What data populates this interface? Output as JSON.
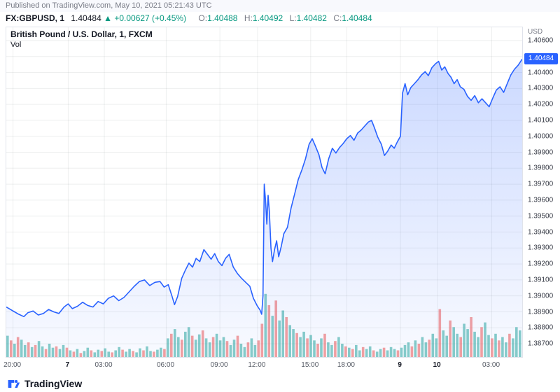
{
  "published_bar": {
    "text": "Published on TradingView.com, May 10, 2021 05:21:43 UTC"
  },
  "symbol_bar": {
    "symbol": "FX:GBPUSD, 1",
    "price": "1.40484",
    "direction_icon": "▲",
    "change": "+0.00627 (+0.45%)",
    "ohlc": [
      {
        "label": "O:",
        "value": "1.40488"
      },
      {
        "label": "H:",
        "value": "1.40492"
      },
      {
        "label": "L:",
        "value": "1.40482"
      },
      {
        "label": "C:",
        "value": "1.40484"
      }
    ]
  },
  "chart": {
    "title": "British Pound / U.S. Dollar, 1, FXCM",
    "vol_label": "Vol",
    "axis_currency": "USD",
    "last_price_label": "1.40484"
  },
  "footer": {
    "brand": "TradingView"
  },
  "colors": {
    "line_blue": "#2962FF",
    "text_green": "#089981",
    "volume_green": "#26a69a",
    "volume_red": "#ef5350",
    "grid": "rgba(42,46,57,0.08)",
    "badge_bg": "#2962FF"
  },
  "chart_data": {
    "type": "area",
    "title": "British Pound / U.S. Dollar, 1, FXCM",
    "ylabel": "USD",
    "legend_position": "none",
    "grid": true,
    "ylim": [
      1.38617,
      1.40683
    ],
    "last_price": 1.40484,
    "y_ticks": [
      1.406,
      1.405,
      1.404,
      1.403,
      1.402,
      1.401,
      1.4,
      1.399,
      1.398,
      1.397,
      1.396,
      1.395,
      1.394,
      1.393,
      1.392,
      1.391,
      1.39,
      1.389,
      1.388,
      1.387
    ],
    "x_ticks": [
      {
        "f": 0.013,
        "label": "20:00",
        "day": false
      },
      {
        "f": 0.12,
        "label": "7",
        "day": true
      },
      {
        "f": 0.19,
        "label": "03:00",
        "day": false
      },
      {
        "f": 0.31,
        "label": "06:00",
        "day": false
      },
      {
        "f": 0.414,
        "label": "09:00",
        "day": false
      },
      {
        "f": 0.487,
        "label": "12:00",
        "day": false
      },
      {
        "f": 0.59,
        "label": "15:00",
        "day": false
      },
      {
        "f": 0.66,
        "label": "18:00",
        "day": false
      },
      {
        "f": 0.764,
        "label": "9",
        "day": true
      },
      {
        "f": 0.836,
        "label": "10",
        "day": true
      },
      {
        "f": 0.941,
        "label": "03:00",
        "day": false
      }
    ],
    "points": [
      [
        0.0,
        1.3893
      ],
      [
        0.008,
        1.38915
      ],
      [
        0.016,
        1.389
      ],
      [
        0.024,
        1.38885
      ],
      [
        0.034,
        1.3887
      ],
      [
        0.042,
        1.38895
      ],
      [
        0.052,
        1.38905
      ],
      [
        0.062,
        1.3888
      ],
      [
        0.072,
        1.3889
      ],
      [
        0.082,
        1.38915
      ],
      [
        0.092,
        1.389
      ],
      [
        0.102,
        1.3889
      ],
      [
        0.112,
        1.3893
      ],
      [
        0.12,
        1.3895
      ],
      [
        0.128,
        1.3892
      ],
      [
        0.138,
        1.38935
      ],
      [
        0.148,
        1.3896
      ],
      [
        0.158,
        1.3894
      ],
      [
        0.168,
        1.3893
      ],
      [
        0.178,
        1.38965
      ],
      [
        0.188,
        1.3895
      ],
      [
        0.198,
        1.38985
      ],
      [
        0.208,
        1.39
      ],
      [
        0.218,
        1.3897
      ],
      [
        0.228,
        1.3899
      ],
      [
        0.238,
        1.39025
      ],
      [
        0.248,
        1.3906
      ],
      [
        0.258,
        1.3909
      ],
      [
        0.268,
        1.391
      ],
      [
        0.278,
        1.39065
      ],
      [
        0.288,
        1.39085
      ],
      [
        0.298,
        1.3909
      ],
      [
        0.306,
        1.39055
      ],
      [
        0.314,
        1.3907
      ],
      [
        0.321,
        1.39
      ],
      [
        0.326,
        1.38945
      ],
      [
        0.332,
        1.38995
      ],
      [
        0.34,
        1.3911
      ],
      [
        0.347,
        1.3916
      ],
      [
        0.354,
        1.39205
      ],
      [
        0.361,
        1.3918
      ],
      [
        0.368,
        1.39235
      ],
      [
        0.375,
        1.39215
      ],
      [
        0.383,
        1.3929
      ],
      [
        0.39,
        1.3926
      ],
      [
        0.397,
        1.3923
      ],
      [
        0.404,
        1.39265
      ],
      [
        0.411,
        1.39215
      ],
      [
        0.418,
        1.3919
      ],
      [
        0.425,
        1.39235
      ],
      [
        0.432,
        1.3926
      ],
      [
        0.44,
        1.3918
      ],
      [
        0.448,
        1.3914
      ],
      [
        0.456,
        1.3911
      ],
      [
        0.464,
        1.39085
      ],
      [
        0.472,
        1.3906
      ],
      [
        0.479,
        1.38985
      ],
      [
        0.486,
        1.3894
      ],
      [
        0.492,
        1.3891
      ],
      [
        0.495,
        1.38885
      ],
      [
        0.4975,
        1.39
      ],
      [
        0.5,
        1.397
      ],
      [
        0.5025,
        1.396
      ],
      [
        0.505,
        1.3945
      ],
      [
        0.5075,
        1.3963
      ],
      [
        0.51,
        1.3952
      ],
      [
        0.513,
        1.393
      ],
      [
        0.516,
        1.39215
      ],
      [
        0.52,
        1.3929
      ],
      [
        0.524,
        1.39345
      ],
      [
        0.528,
        1.39245
      ],
      [
        0.533,
        1.3931
      ],
      [
        0.538,
        1.3939
      ],
      [
        0.545,
        1.3943
      ],
      [
        0.552,
        1.3955
      ],
      [
        0.559,
        1.3964
      ],
      [
        0.566,
        1.3973
      ],
      [
        0.573,
        1.3979
      ],
      [
        0.58,
        1.3986
      ],
      [
        0.587,
        1.3995
      ],
      [
        0.593,
        1.39985
      ],
      [
        0.599,
        1.3994
      ],
      [
        0.606,
        1.39885
      ],
      [
        0.612,
        1.39805
      ],
      [
        0.618,
        1.39765
      ],
      [
        0.625,
        1.3986
      ],
      [
        0.632,
        1.39925
      ],
      [
        0.639,
        1.39895
      ],
      [
        0.646,
        1.3993
      ],
      [
        0.653,
        1.39955
      ],
      [
        0.66,
        1.39985
      ],
      [
        0.667,
        1.40005
      ],
      [
        0.674,
        1.39975
      ],
      [
        0.681,
        1.4002
      ],
      [
        0.688,
        1.4004
      ],
      [
        0.695,
        1.40065
      ],
      [
        0.702,
        1.4009
      ],
      [
        0.708,
        1.401
      ],
      [
        0.714,
        1.4005
      ],
      [
        0.72,
        1.39995
      ],
      [
        0.727,
        1.3995
      ],
      [
        0.733,
        1.3988
      ],
      [
        0.739,
        1.39905
      ],
      [
        0.746,
        1.39945
      ],
      [
        0.752,
        1.39925
      ],
      [
        0.758,
        1.39965
      ],
      [
        0.764,
        1.4
      ],
      [
        0.768,
        1.4027
      ],
      [
        0.773,
        1.4033
      ],
      [
        0.778,
        1.4026
      ],
      [
        0.784,
        1.40305
      ],
      [
        0.791,
        1.4033
      ],
      [
        0.798,
        1.40355
      ],
      [
        0.805,
        1.40385
      ],
      [
        0.812,
        1.40405
      ],
      [
        0.818,
        1.4038
      ],
      [
        0.825,
        1.4043
      ],
      [
        0.832,
        1.40455
      ],
      [
        0.838,
        1.4047
      ],
      [
        0.844,
        1.40415
      ],
      [
        0.85,
        1.40435
      ],
      [
        0.856,
        1.40395
      ],
      [
        0.862,
        1.4037
      ],
      [
        0.868,
        1.4033
      ],
      [
        0.874,
        1.40355
      ],
      [
        0.88,
        1.4031
      ],
      [
        0.887,
        1.40295
      ],
      [
        0.894,
        1.4025
      ],
      [
        0.901,
        1.40225
      ],
      [
        0.908,
        1.40255
      ],
      [
        0.915,
        1.4021
      ],
      [
        0.922,
        1.40235
      ],
      [
        0.929,
        1.4021
      ],
      [
        0.936,
        1.40185
      ],
      [
        0.943,
        1.4024
      ],
      [
        0.95,
        1.4029
      ],
      [
        0.957,
        1.4031
      ],
      [
        0.964,
        1.40275
      ],
      [
        0.971,
        1.4033
      ],
      [
        0.978,
        1.40385
      ],
      [
        0.985,
        1.4042
      ],
      [
        0.992,
        1.40445
      ],
      [
        1.0,
        1.40484
      ]
    ],
    "volume": [
      0.32,
      -0.25,
      0.2,
      -0.3,
      0.26,
      0.18,
      -0.22,
      0.15,
      -0.18,
      0.24,
      0.16,
      -0.12,
      0.2,
      0.14,
      -0.16,
      0.12,
      0.18,
      -0.14,
      0.1,
      -0.08,
      0.12,
      -0.06,
      0.09,
      0.14,
      -0.1,
      0.07,
      0.11,
      -0.09,
      0.13,
      0.08,
      -0.07,
      0.1,
      0.15,
      -0.11,
      0.08,
      0.12,
      -0.09,
      0.07,
      0.13,
      -0.1,
      0.16,
      0.09,
      -0.08,
      0.11,
      0.14,
      -0.12,
      0.28,
      -0.35,
      0.42,
      0.3,
      -0.26,
      0.38,
      0.45,
      -0.32,
      0.26,
      0.34,
      -0.4,
      0.28,
      0.22,
      -0.3,
      0.35,
      0.25,
      0.3,
      -0.24,
      0.18,
      0.26,
      -0.32,
      0.2,
      0.15,
      -0.22,
      0.28,
      0.18,
      -0.25,
      -0.5,
      0.95,
      -0.78,
      0.62,
      -0.85,
      0.55,
      0.7,
      -0.6,
      0.48,
      0.42,
      -0.36,
      0.3,
      0.38,
      -0.28,
      0.33,
      0.25,
      -0.2,
      0.28,
      -0.35,
      0.22,
      0.18,
      -0.24,
      0.3,
      0.2,
      -0.16,
      0.14,
      -0.12,
      0.18,
      0.1,
      -0.15,
      0.12,
      0.16,
      -0.1,
      0.08,
      0.12,
      -0.14,
      0.1,
      0.15,
      0.12,
      -0.1,
      0.14,
      0.18,
      0.22,
      -0.16,
      0.25,
      -0.2,
      0.3,
      0.22,
      -0.26,
      0.35,
      0.28,
      -0.72,
      0.4,
      0.32,
      -0.55,
      0.45,
      0.35,
      -0.3,
      0.5,
      0.42,
      -0.6,
      0.38,
      0.3,
      -0.45,
      0.52,
      0.33,
      -0.28,
      0.35,
      -0.25,
      0.3,
      0.22,
      -0.35,
      0.28,
      0.45,
      0.4
    ]
  }
}
